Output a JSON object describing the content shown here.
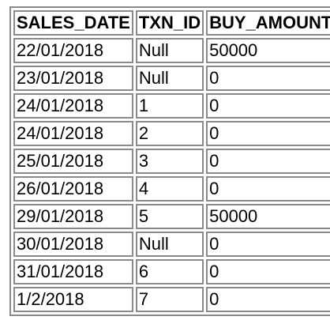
{
  "table": {
    "headers": [
      "SALES_DATE",
      "TXN_ID",
      "BUY_AMOUNT"
    ],
    "rows": [
      [
        "22/01/2018",
        "Null",
        "50000"
      ],
      [
        "23/01/2018",
        "Null",
        "0"
      ],
      [
        "24/01/2018",
        "1",
        "0"
      ],
      [
        "24/01/2018",
        "2",
        "0"
      ],
      [
        "25/01/2018",
        "3",
        "0"
      ],
      [
        "26/01/2018",
        "4",
        "0"
      ],
      [
        "29/01/2018",
        "5",
        "50000"
      ],
      [
        "30/01/2018",
        "Null",
        "0"
      ],
      [
        "31/01/2018",
        "6",
        "0"
      ],
      [
        "1/2/2018",
        "7",
        "0"
      ]
    ]
  }
}
